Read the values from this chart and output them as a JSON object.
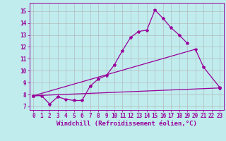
{
  "background_color": "#c0ecee",
  "grid_color": "#b0b0b0",
  "line_color": "#990099",
  "xlim": [
    -0.5,
    23.5
  ],
  "ylim": [
    6.7,
    15.7
  ],
  "yticks": [
    7,
    8,
    9,
    10,
    11,
    12,
    13,
    14,
    15
  ],
  "xticks": [
    0,
    1,
    2,
    3,
    4,
    5,
    6,
    7,
    8,
    9,
    10,
    11,
    12,
    13,
    14,
    15,
    16,
    17,
    18,
    19,
    20,
    21,
    22,
    23
  ],
  "xlabel": "Windchill (Refroidissement éolien,°C)",
  "xlabel_fontsize": 6.5,
  "tick_fontsize": 5.5,
  "curve1_x": [
    0,
    1,
    2,
    3,
    4,
    5,
    6,
    7,
    8,
    9,
    10,
    11,
    12,
    13,
    14,
    15,
    16,
    17,
    18,
    19
  ],
  "curve1_y": [
    7.9,
    7.9,
    7.2,
    7.8,
    7.6,
    7.5,
    7.5,
    8.7,
    9.3,
    9.6,
    10.5,
    11.7,
    12.8,
    13.3,
    13.4,
    15.1,
    14.4,
    13.6,
    13.0,
    12.3
  ],
  "curve2_x": [
    0,
    20,
    21,
    23
  ],
  "curve2_y": [
    7.9,
    11.8,
    10.3,
    8.6
  ],
  "curve3_x": [
    0,
    23
  ],
  "curve3_y": [
    7.9,
    8.55
  ]
}
